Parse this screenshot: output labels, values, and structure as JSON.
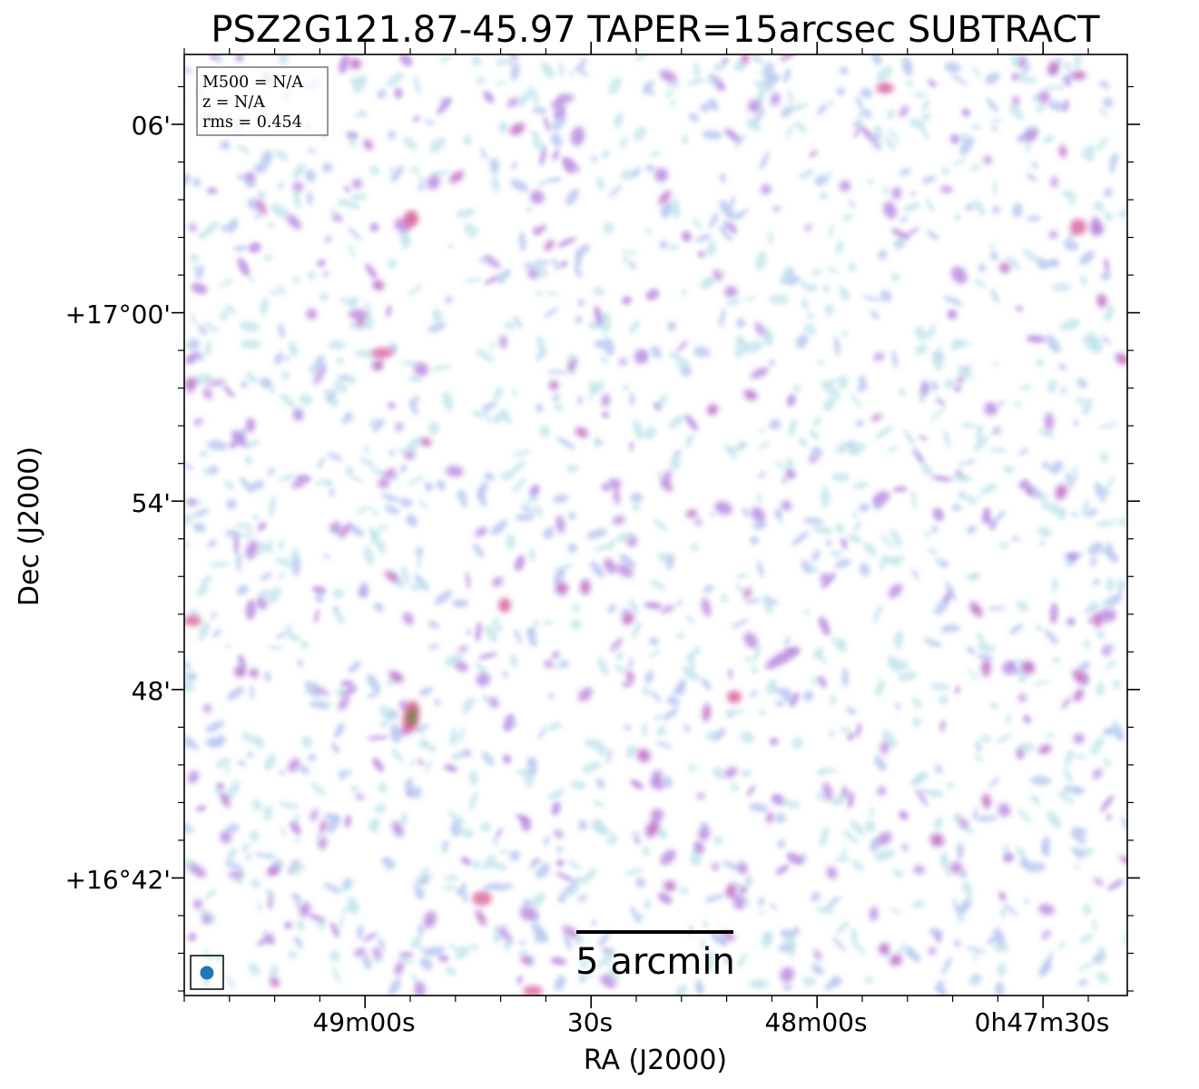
{
  "title": "PSZ2G121.87-45.97 TAPER=15arcsec SUBTRACT",
  "xlabel": "RA (J2000)",
  "ylabel": "Dec (J2000)",
  "x_ticks": [
    "49m00s",
    "30s",
    "48m00s",
    "0h47m30s"
  ],
  "y_ticks": [
    "06'",
    "+17°00'",
    "54'",
    "48'",
    "+16°42'"
  ],
  "info": {
    "m500": "M500 = N/A",
    "z": "z = N/A",
    "rms": "rms = 0.454"
  },
  "scalebar_label": "5 arcmin",
  "colors": {
    "faint": "#bfe3ea",
    "low": "#b6c6f0",
    "mid": "#b98be0",
    "high": "#d9609a",
    "peak": "#6b8a3a",
    "beam": "#1f77b4"
  },
  "sources": [
    {
      "name": "bright-source-west",
      "ra": "0h48m57s",
      "dec": "+16°47.3'"
    },
    {
      "name": "compact-source-north",
      "ra": "0h48m56s",
      "dec": "+17°03'"
    }
  ]
}
